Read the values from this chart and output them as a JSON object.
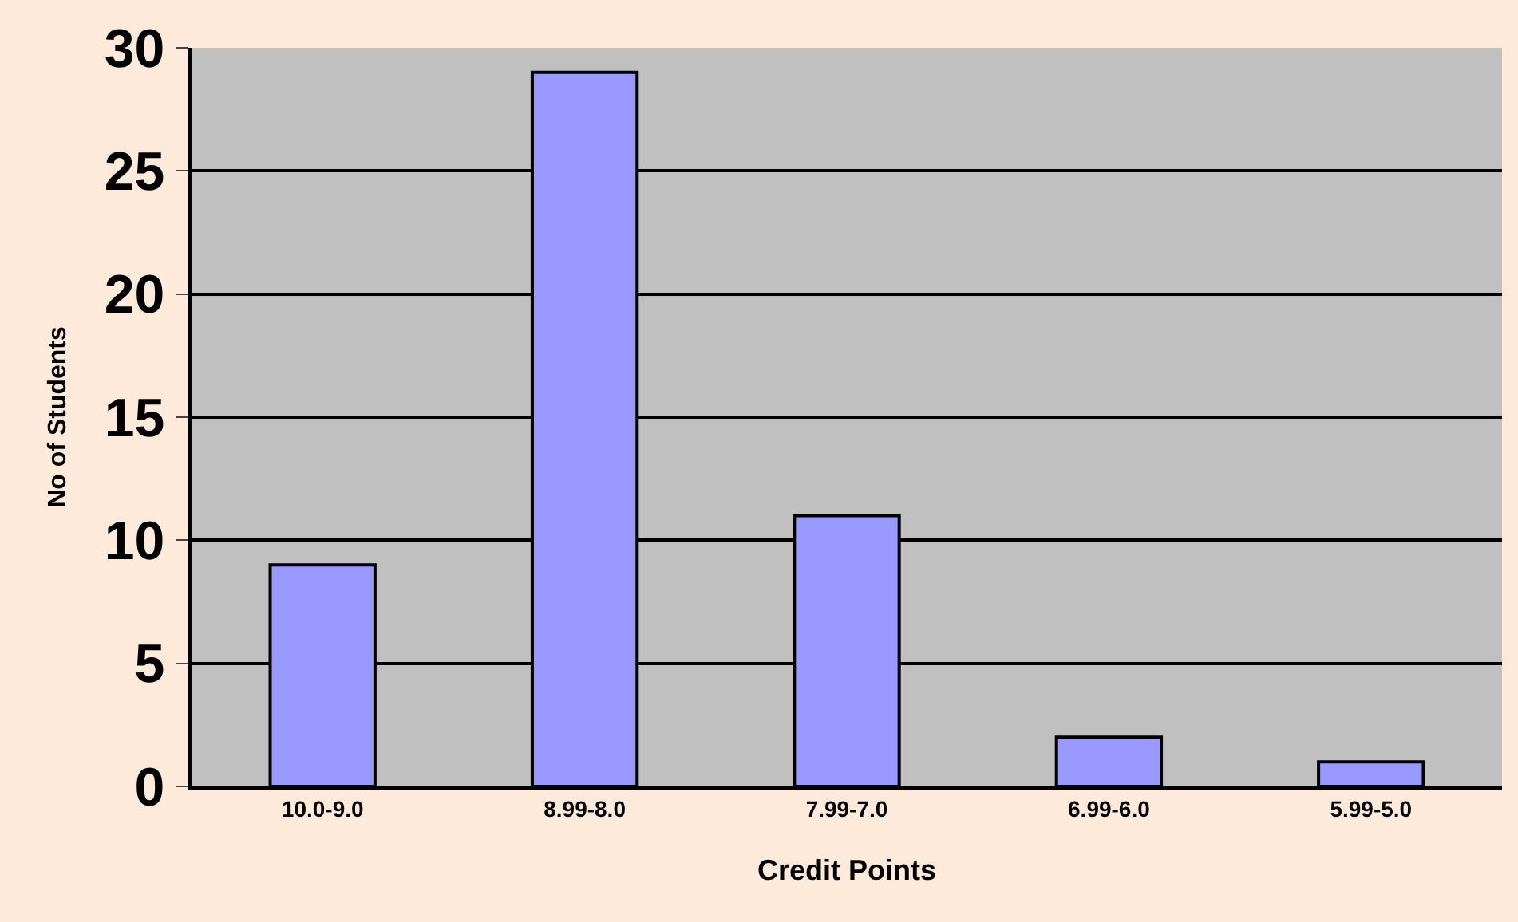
{
  "chart_data": {
    "type": "bar",
    "xlabel": "Credit Points",
    "ylabel": "No of Students",
    "categories": [
      "10.0-9.0",
      "8.99-8.0",
      "7.99-7.0",
      "6.99-6.0",
      "5.99-5.0"
    ],
    "values": [
      9,
      29,
      11,
      2,
      1
    ],
    "color": "#9999ff",
    "ylim": [
      0,
      30
    ],
    "yticks": [
      0,
      5,
      10,
      15,
      20,
      25,
      30
    ],
    "grid": "y"
  }
}
